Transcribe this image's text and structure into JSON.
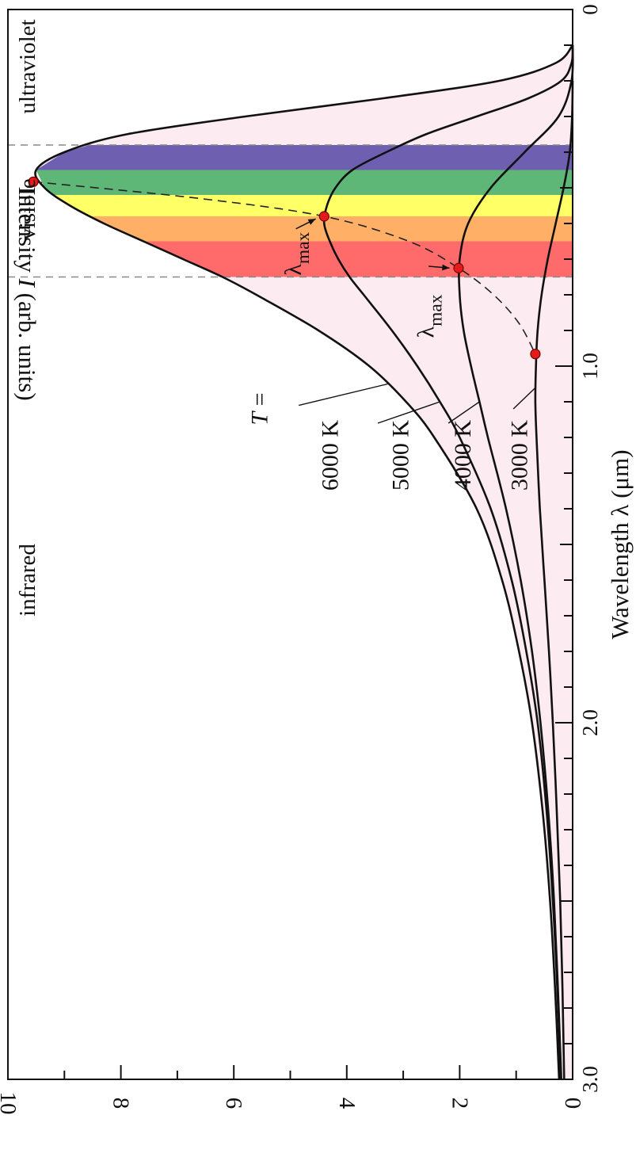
{
  "chart_data": {
    "type": "line",
    "orientation": "rotated 90° clockwise",
    "xlabel_prefix": "Wavelength ",
    "xlabel_symbol": "λ",
    "xlabel_unit": " (μm)",
    "ylabel_prefix": "Intensity ",
    "ylabel_symbol": "I",
    "ylabel_unit": " (arb. units)",
    "xlim": [
      0,
      3.0
    ],
    "ylim": [
      0,
      10
    ],
    "x_ticks": [
      "0",
      "1.0",
      "2.0",
      "3.0"
    ],
    "y_ticks": [
      "0",
      "2",
      "4",
      "6",
      "8",
      "10"
    ],
    "series": [
      {
        "name": "6000 K",
        "temperature": 6000,
        "x": [
          0.1,
          0.15,
          0.2,
          0.25,
          0.3,
          0.35,
          0.4,
          0.45,
          0.5,
          0.55,
          0.6,
          0.65,
          0.7,
          0.75,
          0.8,
          0.9,
          1.0,
          1.1,
          1.2,
          1.4,
          1.6,
          1.8,
          2.0,
          2.25,
          2.5,
          2.75,
          3.0
        ],
        "y": [
          0.0,
          0.3,
          1.3,
          3.4,
          5.8,
          7.9,
          9.0,
          9.5,
          9.35,
          8.9,
          8.3,
          7.6,
          6.9,
          6.2,
          5.6,
          4.5,
          3.6,
          2.95,
          2.45,
          1.7,
          1.25,
          0.95,
          0.72,
          0.53,
          0.4,
          0.31,
          0.24
        ]
      },
      {
        "name": "5000 K",
        "temperature": 5000,
        "x": [
          0.1,
          0.15,
          0.2,
          0.25,
          0.3,
          0.35,
          0.4,
          0.45,
          0.5,
          0.55,
          0.6,
          0.65,
          0.7,
          0.75,
          0.8,
          0.9,
          1.0,
          1.1,
          1.2,
          1.4,
          1.6,
          1.8,
          2.0,
          2.25,
          2.5,
          2.75,
          3.0
        ],
        "y": [
          0.0,
          0.02,
          0.2,
          0.8,
          1.7,
          2.6,
          3.3,
          3.9,
          4.2,
          4.35,
          4.4,
          4.3,
          4.15,
          3.95,
          3.7,
          3.2,
          2.75,
          2.35,
          2.0,
          1.45,
          1.08,
          0.82,
          0.62,
          0.46,
          0.35,
          0.27,
          0.21
        ]
      },
      {
        "name": "4000 K",
        "temperature": 4000,
        "x": [
          0.1,
          0.2,
          0.3,
          0.4,
          0.5,
          0.6,
          0.7,
          0.8,
          0.9,
          1.0,
          1.1,
          1.2,
          1.4,
          1.6,
          1.8,
          2.0,
          2.25,
          2.5,
          2.75,
          3.0
        ],
        "y": [
          0.0,
          0.02,
          0.25,
          0.85,
          1.45,
          1.85,
          2.0,
          2.0,
          1.93,
          1.8,
          1.65,
          1.5,
          1.18,
          0.92,
          0.72,
          0.57,
          0.43,
          0.33,
          0.26,
          0.2
        ]
      },
      {
        "name": "3000 K",
        "temperature": 3000,
        "x": [
          0.2,
          0.3,
          0.4,
          0.5,
          0.6,
          0.7,
          0.8,
          0.9,
          1.0,
          1.1,
          1.2,
          1.4,
          1.6,
          1.8,
          2.0,
          2.25,
          2.5,
          2.75,
          3.0
        ],
        "y": [
          0.0,
          0.01,
          0.05,
          0.16,
          0.3,
          0.44,
          0.55,
          0.62,
          0.65,
          0.66,
          0.64,
          0.58,
          0.5,
          0.42,
          0.35,
          0.28,
          0.22,
          0.18,
          0.15
        ]
      }
    ],
    "peaks": [
      {
        "temperature": 6000,
        "x": 0.483,
        "y": 9.55
      },
      {
        "temperature": 5000,
        "x": 0.58,
        "y": 4.4
      },
      {
        "temperature": 4000,
        "x": 0.725,
        "y": 2.02
      },
      {
        "temperature": 3000,
        "x": 0.966,
        "y": 0.66
      }
    ],
    "wien_curve": {
      "x": [
        0.483,
        0.53,
        0.58,
        0.65,
        0.725,
        0.8,
        0.88,
        0.966
      ],
      "y": [
        9.55,
        6.6,
        4.4,
        2.9,
        2.02,
        1.4,
        0.95,
        0.66
      ]
    },
    "visible_band": [
      0.38,
      0.75
    ],
    "spectrum_bands": [
      {
        "x0": 0.38,
        "x1": 0.45,
        "color": "#6e5fb0"
      },
      {
        "x0": 0.45,
        "x1": 0.52,
        "color": "#5fb777"
      },
      {
        "x0": 0.52,
        "x1": 0.58,
        "color": "#ffff66"
      },
      {
        "x0": 0.58,
        "x1": 0.65,
        "color": "#ffb066"
      },
      {
        "x0": 0.65,
        "x1": 0.75,
        "color": "#ff6b6b"
      }
    ],
    "fill_color": "#fcecf2",
    "region_labels": [
      "ultraviolet",
      "visible",
      "infrared"
    ],
    "temperature_prefix_symbol": "T",
    "temperature_prefix_rest": " =",
    "lambda_max_symbol": "λ",
    "lambda_max_sub": "max",
    "grid": false,
    "legend": "none (curves labelled directly)"
  }
}
